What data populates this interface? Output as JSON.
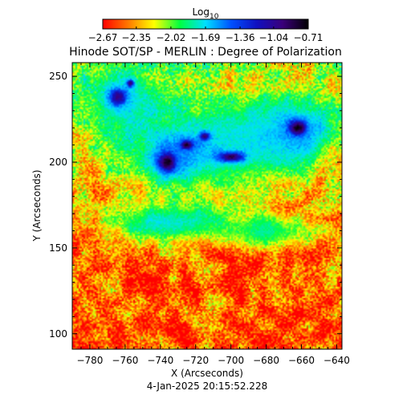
{
  "chart_data": {
    "type": "heatmap",
    "title": "Hinode SOT/SP - MERLIN : Degree of Polarization",
    "xlabel": "X (Arcseconds)",
    "ylabel": "Y (Arcseconds)",
    "timestamp": "4-Jan-2025 20:15:52.228",
    "xlim": [
      -790,
      -637
    ],
    "ylim": [
      91,
      258
    ],
    "x_ticks": [
      -780,
      -760,
      -740,
      -720,
      -700,
      -680,
      -660,
      -640
    ],
    "x_tick_labels": [
      "−780",
      "−760",
      "−740",
      "−720",
      "−700",
      "−680",
      "−660",
      "−640"
    ],
    "y_ticks": [
      100,
      150,
      200,
      250
    ],
    "y_tick_labels": [
      "100",
      "150",
      "200",
      "250"
    ],
    "colorbar": {
      "title_main": "Log",
      "title_sub": "10",
      "range": [
        -2.67,
        -0.71
      ],
      "ticks": [
        -2.67,
        -2.35,
        -2.02,
        -1.69,
        -1.36,
        -1.04,
        -0.71
      ],
      "tick_labels": [
        "−2.67",
        "−2.35",
        "−2.02",
        "−1.69",
        "−1.36",
        "−1.04",
        "−0.71"
      ],
      "colormap": [
        "#ff0000",
        "#ff7a00",
        "#ffff00",
        "#00ff40",
        "#00e0ff",
        "#0050ff",
        "#1010c0",
        "#3a007a",
        "#000000"
      ]
    },
    "features": [
      {
        "type": "blob",
        "cx": -736,
        "cy": 200,
        "rx": 9,
        "ry": 10,
        "value": -0.75
      },
      {
        "type": "blob",
        "cx": -725,
        "cy": 210,
        "rx": 7,
        "ry": 5,
        "value": -0.8
      },
      {
        "type": "blob",
        "cx": -700,
        "cy": 203,
        "rx": 12,
        "ry": 5,
        "value": -0.85
      },
      {
        "type": "blob",
        "cx": -715,
        "cy": 215,
        "rx": 5,
        "ry": 4,
        "value": -0.95
      },
      {
        "type": "blob",
        "cx": -662,
        "cy": 220,
        "rx": 9,
        "ry": 8,
        "value": -0.72
      },
      {
        "type": "blob",
        "cx": -764,
        "cy": 238,
        "rx": 8,
        "ry": 9,
        "value": -1.0
      },
      {
        "type": "blob",
        "cx": -757,
        "cy": 246,
        "rx": 3,
        "ry": 3,
        "value": -0.9
      },
      {
        "type": "region",
        "cx": -725,
        "cy": 205,
        "rx": 40,
        "ry": 22,
        "value": -1.45
      },
      {
        "type": "region",
        "cx": -690,
        "cy": 215,
        "rx": 35,
        "ry": 25,
        "value": -1.7
      },
      {
        "type": "region",
        "cx": -760,
        "cy": 235,
        "rx": 25,
        "ry": 22,
        "value": -1.6
      },
      {
        "type": "region",
        "cx": -735,
        "cy": 165,
        "rx": 40,
        "ry": 12,
        "value": -1.55
      },
      {
        "type": "region",
        "cx": -680,
        "cy": 160,
        "rx": 30,
        "ry": 10,
        "value": -1.75
      },
      {
        "type": "region",
        "cx": -662,
        "cy": 218,
        "rx": 22,
        "ry": 20,
        "value": -1.5
      }
    ]
  }
}
